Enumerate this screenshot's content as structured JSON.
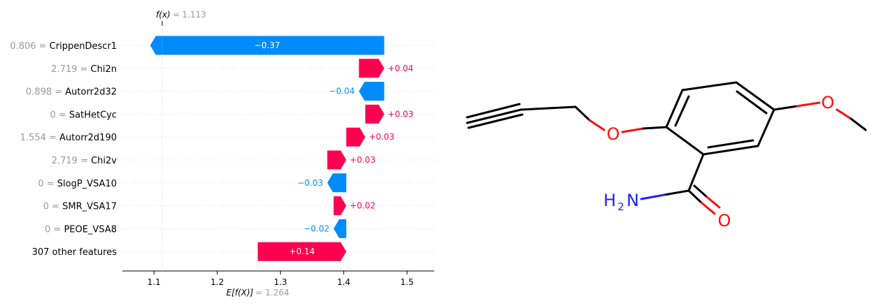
{
  "chart_data": {
    "type": "waterfall",
    "fx": {
      "symbol": "f(x)",
      "value_text": "= 1.113",
      "value": 1.113
    },
    "expected": {
      "symbol": "E[f(X)]",
      "value_text": "= 1.264",
      "value": 1.264
    },
    "features": [
      {
        "value_text": "0.806 =",
        "name": "CrippenDescr1",
        "contribution": -0.37,
        "label": "−0.37"
      },
      {
        "value_text": "2.719 =",
        "name": "Chi2n",
        "contribution": 0.04,
        "label": "+0.04"
      },
      {
        "value_text": "0.898 =",
        "name": "Autorr2d32",
        "contribution": -0.04,
        "label": "−0.04"
      },
      {
        "value_text": "0 =",
        "name": "SatHetCyc",
        "contribution": 0.03,
        "label": "+0.03"
      },
      {
        "value_text": "1.554 =",
        "name": "Autorr2d190",
        "contribution": 0.03,
        "label": "+0.03"
      },
      {
        "value_text": "2.719 =",
        "name": "Chi2v",
        "contribution": 0.03,
        "label": "+0.03"
      },
      {
        "value_text": "0 =",
        "name": "SlogP_VSA10",
        "contribution": -0.03,
        "label": "−0.03"
      },
      {
        "value_text": "0 =",
        "name": "SMR_VSA17",
        "contribution": 0.02,
        "label": "+0.02"
      },
      {
        "value_text": "0 =",
        "name": "PEOE_VSA8",
        "contribution": -0.02,
        "label": "−0.02"
      },
      {
        "value_text": "",
        "name": "307 other features",
        "contribution": 0.14,
        "label": "+0.14"
      }
    ],
    "x_ticks": [
      "1.1",
      "1.2",
      "1.3",
      "1.4",
      "1.5"
    ],
    "x_tick_values": [
      1.1,
      1.2,
      1.3,
      1.4,
      1.5
    ],
    "xlim": [
      1.05,
      1.543
    ],
    "colors": {
      "positive": "#ff0051",
      "negative": "#008bfb",
      "value_gray": "#999999"
    }
  },
  "molecule": {
    "atoms": {
      "o1": "O",
      "o2": "O",
      "o3": "O",
      "h": "H",
      "sub2": "2",
      "n": "N"
    },
    "colors": {
      "oxygen": "#ff0d0d",
      "nitrogen": "#1f1fff",
      "bond": "#000000"
    }
  }
}
